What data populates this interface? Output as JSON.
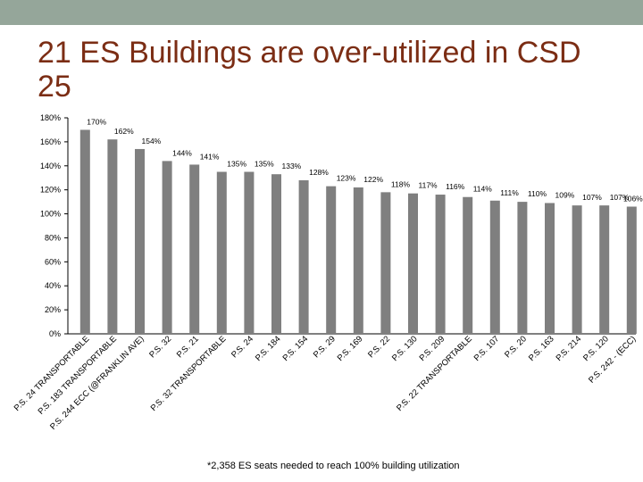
{
  "slide": {
    "title": "21 ES Buildings are over-utilized in CSD 25",
    "footnote": "*2,358 ES seats needed to reach 100% building utilization"
  },
  "colors": {
    "top_bar": "#95a69a",
    "title": "#7b2d14",
    "bar": "#7f7f7f",
    "axis": "#000000"
  },
  "chart_data": {
    "type": "bar",
    "title": "",
    "xlabel": "",
    "ylabel": "",
    "ylim": [
      0,
      180
    ],
    "y_ticks": [
      0,
      20,
      40,
      60,
      80,
      100,
      120,
      140,
      160,
      180
    ],
    "y_tick_labels": [
      "0%",
      "20%",
      "40%",
      "60%",
      "80%",
      "100%",
      "120%",
      "140%",
      "160%",
      "180%"
    ],
    "grid": false,
    "legend": "none",
    "categories": [
      "P.S. 24 TRANSPORTABLE",
      "P.S. 183 TRANSPORTABLE",
      "P.S. 244 ECC (@FRANKLIN AVE)",
      "P.S. 32",
      "P.S. 21",
      "P.S. 32 TRANSPORTABLE",
      "P.S. 24",
      "P.S. 184",
      "P.S. 154",
      "P.S. 29",
      "P.S. 169",
      "P.S. 22",
      "P.S. 130",
      "P.S. 209",
      "P.S. 22 TRANSPORTABLE",
      "P.S. 107",
      "P.S. 20",
      "P.S. 163",
      "P.S. 214",
      "P.S. 120",
      "P.S. 242 - (ECC)"
    ],
    "values": [
      170,
      162,
      154,
      144,
      141,
      135,
      135,
      133,
      128,
      123,
      122,
      118,
      117,
      116,
      114,
      111,
      110,
      109,
      107,
      107,
      106
    ],
    "value_labels": [
      "170%",
      "162%",
      "154%",
      "144%",
      "141%",
      "135%",
      "135%",
      "133%",
      "128%",
      "123%",
      "122%",
      "118%",
      "117%",
      "116%",
      "114%",
      "111%",
      "110%",
      "109%",
      "107%",
      "107%",
      "106%"
    ]
  }
}
